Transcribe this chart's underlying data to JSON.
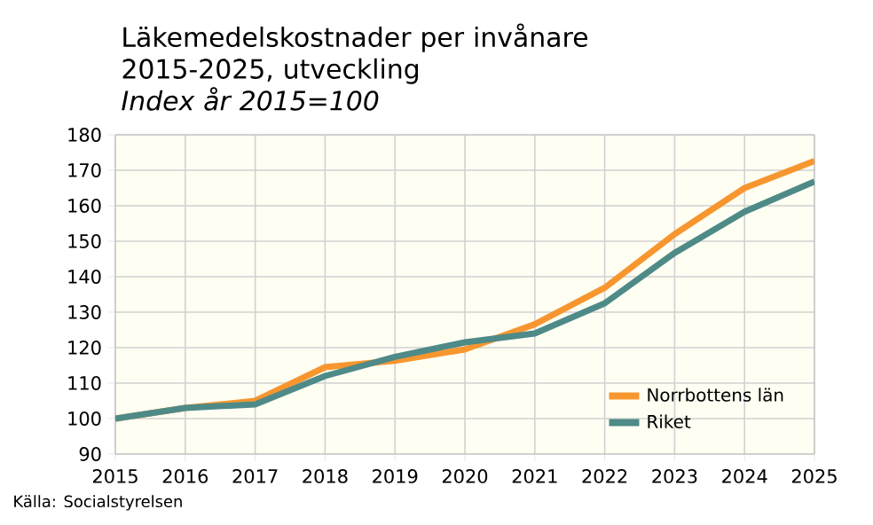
{
  "chart_data": {
    "type": "line",
    "title": "Läkemedelskostnader per invånare 2015-2025, utveckling",
    "subtitle": "Index år 2015=100",
    "x": [
      2015,
      2016,
      2017,
      2018,
      2019,
      2020,
      2021,
      2022,
      2023,
      2024,
      2025
    ],
    "series": [
      {
        "name": "Norrbottens län",
        "color": "#f7962f",
        "values": [
          100,
          103,
          105,
          114.5,
          116.3,
          119.5,
          126.6,
          136.9,
          152,
          165,
          172.6
        ]
      },
      {
        "name": "Riket",
        "color": "#4e8a88",
        "values": [
          100,
          103,
          104,
          112,
          117.4,
          121.5,
          124,
          132.5,
          146.7,
          158.3,
          166.8
        ]
      }
    ],
    "xlim": [
      2015,
      2025
    ],
    "xticks": [
      2015,
      2016,
      2017,
      2018,
      2019,
      2020,
      2021,
      2022,
      2023,
      2024,
      2025
    ],
    "ylim": [
      90,
      180
    ],
    "yticks": [
      90,
      100,
      110,
      120,
      130,
      140,
      150,
      160,
      170,
      180
    ],
    "grid": true,
    "legend": "bottom right",
    "marker": "none",
    "line_style": "solid",
    "annotations": [
      "Källa: Socialstyrelsen"
    ]
  }
}
